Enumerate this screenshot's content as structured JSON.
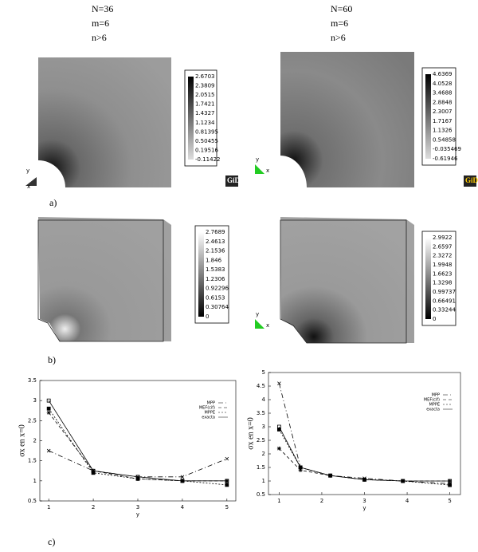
{
  "panels": [
    {
      "labels": [
        "N=36",
        "m=6",
        "n>6"
      ]
    },
    {
      "labels": [
        "N=60",
        "m=6",
        "n>6"
      ]
    }
  ],
  "row_labels": [
    "a)",
    "b)",
    "c)"
  ],
  "logo": "GiD",
  "triad_labels": [
    "y",
    "x"
  ],
  "colorbars": [
    {
      "ticks": [
        2.6703,
        2.3809,
        2.0515,
        1.7421,
        1.4327,
        1.1234,
        0.81395,
        0.50455,
        0.19516,
        -0.11422
      ]
    },
    {
      "ticks": [
        4.6369,
        4.0528,
        3.4688,
        2.8848,
        2.3007,
        1.7167,
        1.1326,
        0.54858,
        -0.035469,
        -0.61946
      ]
    },
    {
      "ticks": [
        2.7689,
        2.4613,
        2.1536,
        1.846,
        1.5383,
        1.2306,
        0.92296,
        0.6153,
        0.30764,
        0
      ]
    },
    {
      "ticks": [
        2.9922,
        2.6597,
        2.3272,
        1.9948,
        1.6623,
        1.3298,
        0.99737,
        0.66491,
        0.33244,
        0
      ]
    }
  ],
  "chart_data": [
    {
      "type": "line",
      "x": [
        1,
        2,
        3,
        4,
        5
      ],
      "xlim": [
        0.8,
        5.2
      ],
      "xticks": [
        1,
        2,
        3,
        4,
        5
      ],
      "ylim": [
        0.5,
        3.5
      ],
      "yticks": [
        0.5,
        1,
        1.5,
        2,
        2.5,
        3,
        3.5
      ],
      "x_label": "y",
      "y_label": "σx en x=0",
      "legend": "upper right",
      "series": [
        {
          "name": "MPP",
          "color": "#000000",
          "marker": "x",
          "values": [
            1.75,
            1.25,
            1.1,
            1.1,
            1.55
          ]
        },
        {
          "name": "MEF(cif)",
          "color": "#000000",
          "marker": "star",
          "values": [
            2.7,
            1.25,
            1.05,
            1.0,
            1.0
          ]
        },
        {
          "name": "MPPE",
          "color": "#000000",
          "marker": "square",
          "values": [
            2.8,
            1.2,
            1.05,
            1.0,
            0.9
          ]
        },
        {
          "name": "exacta",
          "color": "#000000",
          "marker": "open-square",
          "values": [
            3.0,
            1.25,
            1.1,
            1.0,
            1.0
          ]
        }
      ]
    },
    {
      "type": "line",
      "x": [
        1,
        1.5,
        2.2,
        3,
        3.9,
        5
      ],
      "xlim": [
        0.75,
        5.25
      ],
      "xticks": [
        1,
        2,
        3,
        4,
        5
      ],
      "ylim": [
        0.5,
        5
      ],
      "yticks": [
        0.5,
        1,
        1.5,
        2,
        2.5,
        3,
        3.5,
        4,
        4.5,
        5
      ],
      "x_label": "y",
      "y_label": "σx en x=0",
      "legend": "upper right",
      "series": [
        {
          "name": "MPP",
          "color": "#000000",
          "marker": "x",
          "values": [
            4.6,
            1.5,
            1.2,
            1.1,
            1.0,
            0.9
          ]
        },
        {
          "name": "MEF(cif)",
          "color": "#000000",
          "marker": "star",
          "values": [
            2.2,
            1.4,
            1.2,
            1.05,
            1.0,
            1.0
          ]
        },
        {
          "name": "MPPE",
          "color": "#000000",
          "marker": "square",
          "values": [
            2.9,
            1.5,
            1.2,
            1.05,
            1.0,
            0.85
          ]
        },
        {
          "name": "exacta",
          "color": "#000000",
          "marker": "open-square",
          "values": [
            3.0,
            1.5,
            1.2,
            1.05,
            1.0,
            1.0
          ]
        }
      ]
    }
  ]
}
